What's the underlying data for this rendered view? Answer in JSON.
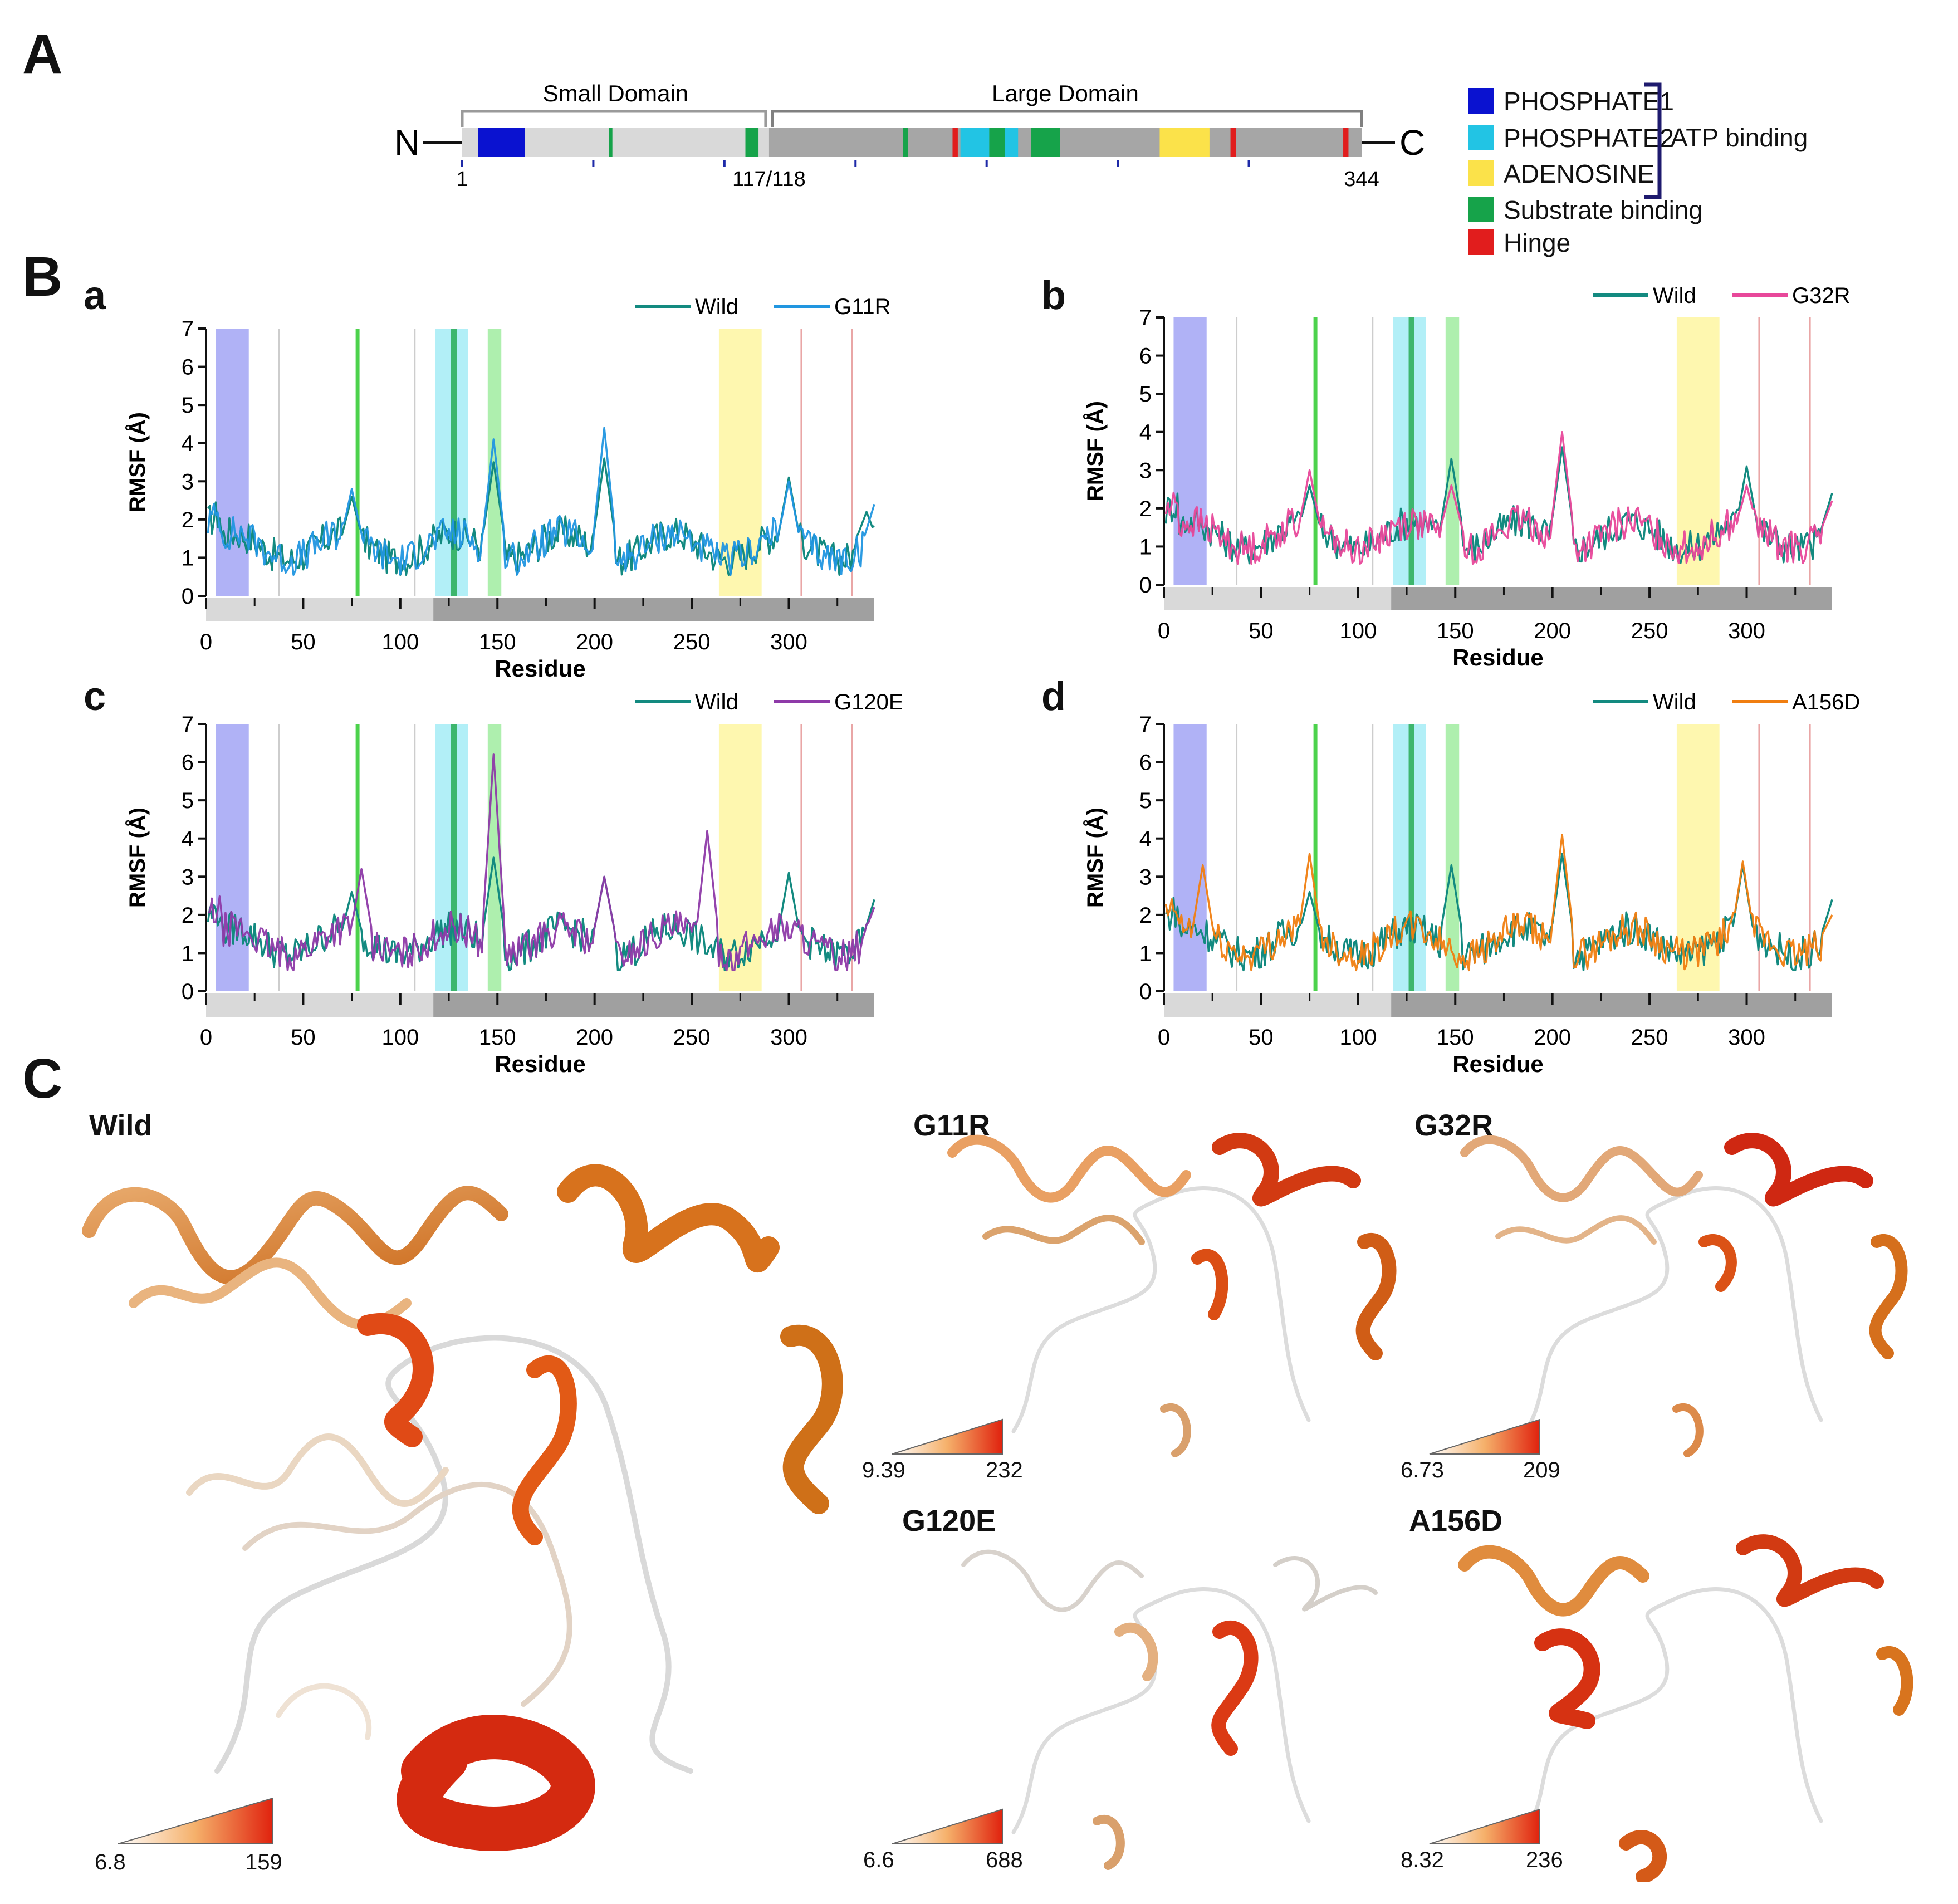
{
  "panels": {
    "a": "A",
    "b": "B",
    "c": "C"
  },
  "domain_map": {
    "n_label": "N",
    "c_label": "C",
    "small_domain": "Small Domain",
    "large_domain": "Large Domain",
    "start": "1",
    "split": "117/118",
    "end": "344",
    "residues_total": 344,
    "segments": [
      {
        "name": "PHOSPHATE1",
        "start": 7,
        "end": 25,
        "color": "#0a12d0"
      },
      {
        "name": "Substrate binding",
        "start": 57,
        "end": 58,
        "color": "#16a34a"
      },
      {
        "name": "Substrate binding",
        "start": 109,
        "end": 114,
        "color": "#16a34a"
      },
      {
        "name": "Substrate binding",
        "start": 169,
        "end": 171,
        "color": "#16a34a"
      },
      {
        "name": "Hinge",
        "start": 188,
        "end": 190,
        "color": "#e11d1d"
      },
      {
        "name": "PHOSPHATE2",
        "start": 191,
        "end": 202,
        "color": "#22c4e4"
      },
      {
        "name": "Substrate binding",
        "start": 202,
        "end": 208,
        "color": "#16a34a"
      },
      {
        "name": "PHOSPHATE2",
        "start": 208,
        "end": 213,
        "color": "#22c4e4"
      },
      {
        "name": "Substrate binding",
        "start": 218,
        "end": 229,
        "color": "#16a34a"
      },
      {
        "name": "ADENOSINE",
        "start": 267,
        "end": 286,
        "color": "#fbe24a"
      },
      {
        "name": "Hinge",
        "start": 294,
        "end": 296,
        "color": "#e11d1d"
      },
      {
        "name": "Hinge",
        "start": 337,
        "end": 339,
        "color": "#e11d1d"
      }
    ]
  },
  "legend": {
    "items": [
      {
        "label": "PHOSPHATE1",
        "color": "#0a12d0"
      },
      {
        "label": "PHOSPHATE2",
        "color": "#22c4e4"
      },
      {
        "label": "ADENOSINE",
        "color": "#fbe24a"
      },
      {
        "label": "Substrate binding",
        "color": "#16a34a"
      },
      {
        "label": "Hinge",
        "color": "#e11d1d"
      }
    ],
    "bracket_label": "ATP binding"
  },
  "chart_data": [
    {
      "id": "a",
      "type": "line",
      "title": "",
      "xlabel": "Residue",
      "ylabel": "RMSF (Å)",
      "xlim": [
        0,
        344
      ],
      "ylim": [
        0,
        7
      ],
      "xticks": [
        0,
        50,
        100,
        150,
        200,
        250,
        300
      ],
      "yticks": [
        0,
        1,
        2,
        3,
        4,
        5,
        6,
        7
      ],
      "series": [
        {
          "name": "Wild",
          "color": "#138a80",
          "peaks": [
            [
              75,
              2.6
            ],
            [
              148,
              3.5
            ],
            [
              205,
              3.6
            ],
            [
              300,
              3.1
            ],
            [
              340,
              2.2
            ]
          ]
        },
        {
          "name": "G11R",
          "color": "#2196e0",
          "peaks": [
            [
              75,
              2.8
            ],
            [
              148,
              4.1
            ],
            [
              205,
              4.4
            ],
            [
              300,
              3.0
            ],
            [
              344,
              2.4
            ]
          ]
        }
      ]
    },
    {
      "id": "b",
      "type": "line",
      "title": "",
      "xlabel": "Residue",
      "ylabel": "RMSF (Å)",
      "xlim": [
        0,
        344
      ],
      "ylim": [
        0,
        7
      ],
      "xticks": [
        0,
        50,
        100,
        150,
        200,
        250,
        300
      ],
      "yticks": [
        0,
        1,
        2,
        3,
        4,
        5,
        6,
        7
      ],
      "series": [
        {
          "name": "Wild",
          "color": "#138a80",
          "peaks": [
            [
              75,
              2.6
            ],
            [
              148,
              3.3
            ],
            [
              205,
              3.6
            ],
            [
              300,
              3.1
            ],
            [
              344,
              2.4
            ]
          ]
        },
        {
          "name": "G32R",
          "color": "#e8489a",
          "peaks": [
            [
              75,
              3.0
            ],
            [
              148,
              2.6
            ],
            [
              205,
              4.0
            ],
            [
              300,
              2.6
            ],
            [
              344,
              2.2
            ]
          ]
        }
      ]
    },
    {
      "id": "c",
      "type": "line",
      "title": "",
      "xlabel": "Residue",
      "ylabel": "RMSF (Å)",
      "xlim": [
        0,
        344
      ],
      "ylim": [
        0,
        7
      ],
      "xticks": [
        0,
        50,
        100,
        150,
        200,
        250,
        300
      ],
      "yticks": [
        0,
        1,
        2,
        3,
        4,
        5,
        6,
        7
      ],
      "series": [
        {
          "name": "Wild",
          "color": "#138a80",
          "peaks": [
            [
              75,
              2.6
            ],
            [
              148,
              3.5
            ],
            [
              205,
              3.0
            ],
            [
              300,
              3.1
            ],
            [
              344,
              2.4
            ]
          ]
        },
        {
          "name": "G120E",
          "color": "#8e3aa8",
          "peaks": [
            [
              80,
              3.2
            ],
            [
              148,
              6.2
            ],
            [
              205,
              3.0
            ],
            [
              258,
              4.2
            ],
            [
              344,
              2.2
            ]
          ]
        }
      ]
    },
    {
      "id": "d",
      "type": "line",
      "title": "",
      "xlabel": "Residue",
      "ylabel": "RMSF (Å)",
      "xlim": [
        0,
        344
      ],
      "ylim": [
        0,
        7
      ],
      "xticks": [
        0,
        50,
        100,
        150,
        200,
        250,
        300
      ],
      "yticks": [
        0,
        1,
        2,
        3,
        4,
        5,
        6,
        7
      ],
      "series": [
        {
          "name": "Wild",
          "color": "#138a80",
          "peaks": [
            [
              75,
              2.6
            ],
            [
              148,
              3.3
            ],
            [
              205,
              3.6
            ],
            [
              298,
              3.3
            ],
            [
              344,
              2.4
            ]
          ]
        },
        {
          "name": "A156D",
          "color": "#f07e10",
          "peaks": [
            [
              20,
              3.3
            ],
            [
              75,
              3.6
            ],
            [
              205,
              4.1
            ],
            [
              298,
              3.4
            ],
            [
              344,
              2.0
            ]
          ]
        }
      ]
    }
  ],
  "structures": [
    {
      "label": "Wild",
      "scale_min": "6.8",
      "scale_max": "159"
    },
    {
      "label": "G11R",
      "scale_min": "9.39",
      "scale_max": "232"
    },
    {
      "label": "G32R",
      "scale_min": "6.73",
      "scale_max": "209"
    },
    {
      "label": "G120E",
      "scale_min": "6.6",
      "scale_max": "688"
    },
    {
      "label": "A156D",
      "scale_min": "8.32",
      "scale_max": "236"
    }
  ]
}
